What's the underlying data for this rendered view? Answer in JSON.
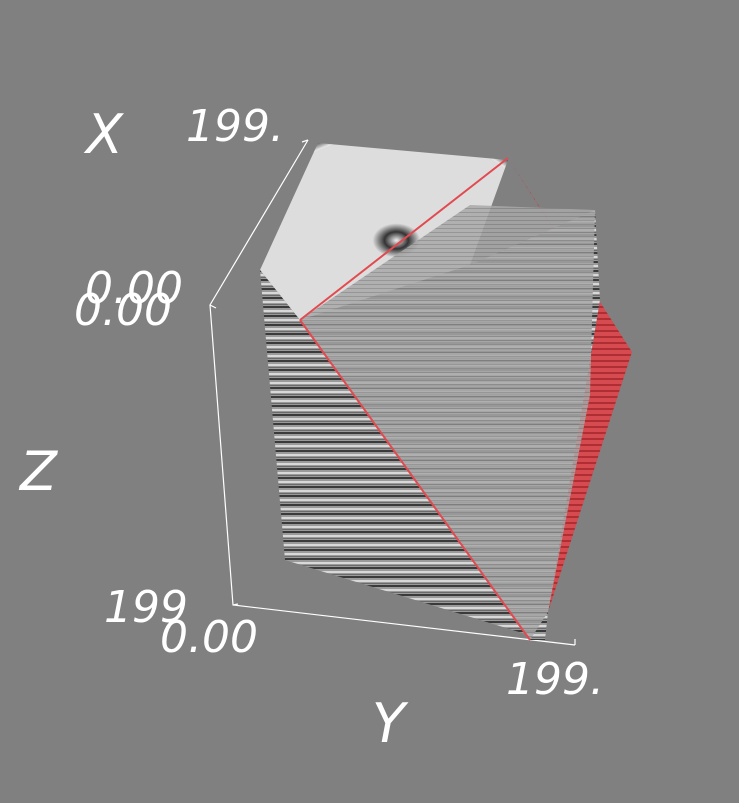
{
  "axes": {
    "x": {
      "title": "X",
      "labels": [
        "199.",
        "0.00"
      ]
    },
    "z": {
      "title": "Z",
      "labels": [
        "0.00",
        "199"
      ]
    },
    "y": {
      "title": "Y",
      "labels": [
        "0.00",
        "199."
      ]
    }
  }
}
